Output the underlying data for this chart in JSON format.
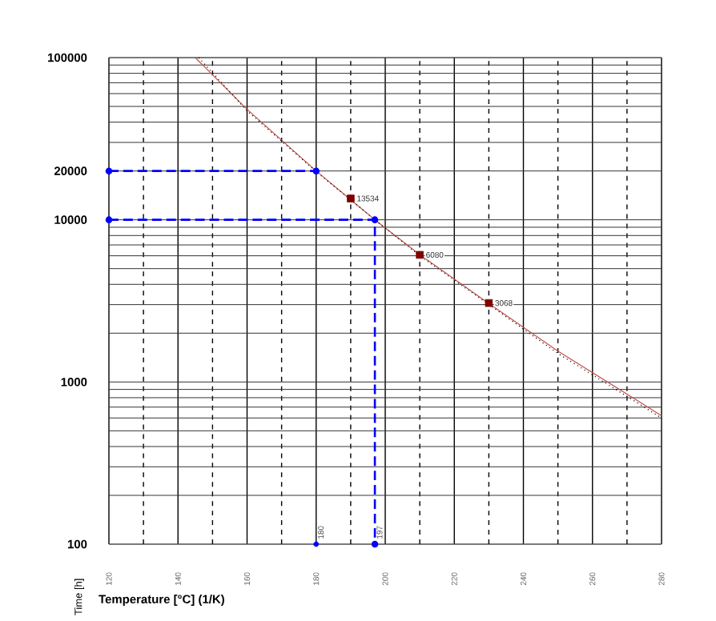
{
  "chart_data": {
    "type": "scatter",
    "xlabel": "Temperature [°C]  (1/K)",
    "ylabel": "Time [h]",
    "log": "y",
    "grid": true,
    "xlim": [
      120,
      280
    ],
    "ylim": [
      100,
      100000
    ],
    "xticks": [
      120,
      {
        "value": 130,
        "label": null
      },
      140,
      {
        "value": 150,
        "label": null
      },
      160,
      {
        "value": 170,
        "label": null
      },
      180,
      {
        "value": 190,
        "label": null
      },
      200,
      {
        "value": 210,
        "label": null
      },
      220,
      {
        "value": 230,
        "label": null
      },
      240,
      {
        "value": 250,
        "label": null
      },
      260,
      {
        "value": 270,
        "label": null
      },
      280
    ],
    "yticks": [
      100,
      {
        "value": 200,
        "label": null
      },
      {
        "value": 300,
        "label": null
      },
      {
        "value": 400,
        "label": null
      },
      {
        "value": 500,
        "label": null
      },
      {
        "value": 600,
        "label": null
      },
      {
        "value": 700,
        "label": null
      },
      {
        "value": 800,
        "label": null
      },
      {
        "value": 900,
        "label": null
      },
      1000,
      {
        "value": 2000,
        "label": null
      },
      {
        "value": 3000,
        "label": null
      },
      {
        "value": 4000,
        "label": null
      },
      {
        "value": 5000,
        "label": null
      },
      {
        "value": 6000,
        "label": null
      },
      {
        "value": 7000,
        "label": null
      },
      {
        "value": 8000,
        "label": null
      },
      {
        "value": 9000,
        "label": null
      },
      10000,
      20000,
      {
        "value": 30000,
        "label": null
      },
      {
        "value": 40000,
        "label": null
      },
      {
        "value": 50000,
        "label": null
      },
      {
        "value": 60000,
        "label": null
      },
      {
        "value": 70000,
        "label": null
      },
      {
        "value": 80000,
        "label": null
      },
      {
        "value": 90000,
        "label": null
      },
      100000
    ],
    "series": [
      {
        "type": "line",
        "color": "#c0504d",
        "line_style": "solid",
        "marker": "none",
        "x": [
          145,
          160,
          180,
          197,
          210,
          230,
          250,
          280
        ],
        "values": [
          100000,
          48000,
          20000,
          10000,
          6100,
          3050,
          1550,
          620
        ]
      },
      {
        "type": "line",
        "color": "#000000",
        "line_style": "dotted",
        "marker": "none",
        "x": [
          146,
          160,
          180,
          197,
          210,
          230,
          250,
          280
        ],
        "values": [
          100000,
          47000,
          19800,
          10000,
          6000,
          3000,
          1500,
          600
        ]
      },
      {
        "type": "line",
        "color": "#0000ff",
        "line_style": "dashed",
        "marker": "circle",
        "x": [
          120,
          180
        ],
        "values": [
          20000,
          20000
        ]
      },
      {
        "type": "line",
        "color": "#0000ff",
        "line_style": "dashed",
        "marker": "circle",
        "x": [
          120,
          197,
          197
        ],
        "values": [
          10000,
          10000,
          100
        ]
      },
      {
        "color": "#0000ff",
        "marker": "circle",
        "x": [
          180
        ],
        "values": [
          100
        ]
      },
      {
        "color": "#800000",
        "marker": "square",
        "x": [
          190,
          210,
          230
        ],
        "values": [
          13534,
          6080,
          3068
        ],
        "value_labels": [
          "13534",
          "6080",
          "3068"
        ]
      }
    ],
    "annotations": [
      {
        "text": "180",
        "x": 180,
        "y": 100
      },
      {
        "text": "197",
        "x": 197,
        "y": 100
      }
    ]
  }
}
